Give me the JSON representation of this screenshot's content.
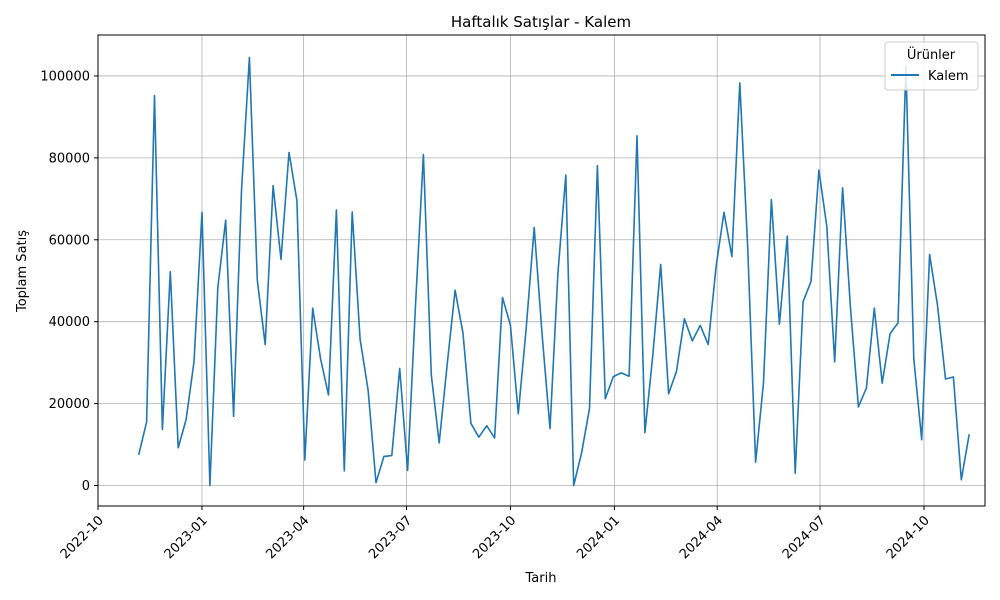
{
  "chart_data": {
    "type": "line",
    "title": "Haftalık Satışlar - Kalem",
    "xlabel": "Tarih",
    "ylabel": "Toplam Satış",
    "xlim": [
      "2022-10-01",
      "2024-11-24"
    ],
    "ylim": [
      -5000,
      110000
    ],
    "grid": true,
    "x_ticks": [
      "2022-10",
      "2023-01",
      "2023-04",
      "2023-07",
      "2023-10",
      "2024-01",
      "2024-04",
      "2024-07",
      "2024-10"
    ],
    "y_ticks": [
      "0",
      "20000",
      "40000",
      "60000",
      "80000",
      "100000"
    ],
    "legend": {
      "title": "Ürünler",
      "position": "top-right"
    },
    "series": [
      {
        "name": "Kalem",
        "color": "#1f77b4",
        "x": [
          "2022-11-06",
          "2022-11-13",
          "2022-11-20",
          "2022-11-27",
          "2022-12-04",
          "2022-12-11",
          "2022-12-18",
          "2022-12-25",
          "2023-01-01",
          "2023-01-08",
          "2023-01-15",
          "2023-01-22",
          "2023-01-29",
          "2023-02-05",
          "2023-02-12",
          "2023-02-19",
          "2023-02-26",
          "2023-03-05",
          "2023-03-12",
          "2023-03-19",
          "2023-03-26",
          "2023-04-02",
          "2023-04-09",
          "2023-04-16",
          "2023-04-23",
          "2023-04-30",
          "2023-05-07",
          "2023-05-14",
          "2023-05-21",
          "2023-05-28",
          "2023-06-04",
          "2023-06-11",
          "2023-06-18",
          "2023-06-25",
          "2023-07-02",
          "2023-07-09",
          "2023-07-16",
          "2023-07-23",
          "2023-07-30",
          "2023-08-06",
          "2023-08-13",
          "2023-08-20",
          "2023-08-27",
          "2023-09-03",
          "2023-09-10",
          "2023-09-17",
          "2023-09-24",
          "2023-10-01",
          "2023-10-08",
          "2023-10-15",
          "2023-10-22",
          "2023-10-29",
          "2023-11-05",
          "2023-11-12",
          "2023-11-19",
          "2023-11-26",
          "2023-12-03",
          "2023-12-10",
          "2023-12-17",
          "2023-12-24",
          "2023-12-31",
          "2024-01-07",
          "2024-01-14",
          "2024-01-21",
          "2024-01-28",
          "2024-02-04",
          "2024-02-11",
          "2024-02-18",
          "2024-02-25",
          "2024-03-03",
          "2024-03-10",
          "2024-03-17",
          "2024-03-24",
          "2024-03-31",
          "2024-04-07",
          "2024-04-14",
          "2024-04-21",
          "2024-04-28",
          "2024-05-05",
          "2024-05-12",
          "2024-05-19",
          "2024-05-26",
          "2024-06-02",
          "2024-06-09",
          "2024-06-16",
          "2024-06-23",
          "2024-06-30",
          "2024-07-07",
          "2024-07-14",
          "2024-07-21",
          "2024-07-28",
          "2024-08-04",
          "2024-08-11",
          "2024-08-18",
          "2024-08-25",
          "2024-09-01",
          "2024-09-08",
          "2024-09-15",
          "2024-09-22",
          "2024-09-29",
          "2024-10-06",
          "2024-10-13",
          "2024-10-20",
          "2024-10-27",
          "2024-11-03",
          "2024-11-10"
        ],
        "values": [
          7500,
          15500,
          95200,
          13700,
          52200,
          9200,
          16100,
          30200,
          66700,
          0,
          48300,
          64800,
          16900,
          72000,
          104500,
          50100,
          34400,
          73200,
          55200,
          81300,
          69600,
          6200,
          43300,
          30900,
          22100,
          67300,
          3600,
          66800,
          35700,
          23300,
          700,
          7100,
          7300,
          28600,
          3700,
          44000,
          80800,
          27000,
          10400,
          29600,
          47700,
          37200,
          15200,
          11800,
          14600,
          11600,
          45900,
          39200,
          17500,
          38400,
          63000,
          36900,
          13900,
          51800,
          75800,
          0,
          8000,
          18800,
          78100,
          21200,
          26600,
          27500,
          26700,
          85400,
          12900,
          31800,
          54000,
          22400,
          27900,
          40700,
          35300,
          39100,
          34400,
          53500,
          66700,
          55900,
          98300,
          58100,
          5700,
          25100,
          69800,
          39400,
          60900,
          3000,
          44900,
          49800,
          77000,
          63300,
          30200,
          72700,
          43300,
          19200,
          23800,
          43300,
          25000,
          37100,
          39700,
          102300,
          30900,
          11200,
          56400,
          44000,
          26000,
          26500,
          1400,
          12500
        ]
      }
    ]
  }
}
